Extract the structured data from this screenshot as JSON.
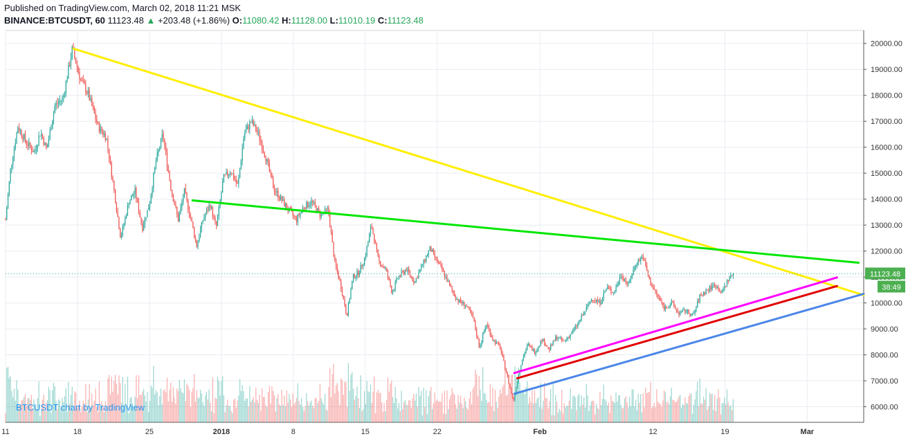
{
  "header": {
    "published": "Published on TradingView.com, March 02, 2018 11:21 MSK",
    "symbol": "BINANCE:BTCUSDT, 60",
    "last": "11123.48",
    "arrow": "▲",
    "change": "+203.48 (+1.86%)",
    "o_label": "O:",
    "o_value": "11080.42",
    "h_label": "H:",
    "h_value": "11128.00",
    "l_label": "L:",
    "l_value": "11010.19",
    "c_label": "C:",
    "c_value": "11123.48"
  },
  "watermark": "BTCUSDT chart by TradingView",
  "colors": {
    "up": "#26a69a",
    "down": "#ef5350",
    "grid": "#e9ecf2",
    "yellow_line": "#ffee00",
    "green_line": "#00e600",
    "magenta_line": "#ff00ff",
    "red_line": "#e00000",
    "blue_line": "#4a86e8",
    "price_tag": "#4caf50",
    "ma": "#f4a460"
  },
  "chart_data": {
    "type": "candlestick",
    "price_axis": {
      "ticks": [
        6000,
        7000,
        8000,
        9000,
        10000,
        11000,
        12000,
        13000,
        14000,
        15000,
        16000,
        17000,
        18000,
        19000,
        20000
      ],
      "tick_labels": [
        "6000.00",
        "7000.00",
        "8000.00",
        "9000.00",
        "10000.00",
        "11000.00",
        "12000.00",
        "13000.00",
        "14000.00",
        "15000.00",
        "16000.00",
        "17000.00",
        "18000.00",
        "19000.00",
        "20000.00"
      ],
      "range": [
        5400,
        20500
      ]
    },
    "time_axis": {
      "ticks": [
        0,
        7,
        14,
        21,
        28,
        35,
        42,
        49,
        56,
        63,
        70,
        77,
        84
      ],
      "tick_labels": [
        "11",
        "18",
        "25",
        "2018",
        "8",
        "15",
        "22",
        "Feb",
        "12",
        "19",
        "Mar"
      ],
      "tick_days": [
        0,
        7,
        14,
        21,
        28,
        35,
        42,
        52,
        63,
        70,
        78
      ],
      "range_days": [
        0,
        83.5
      ],
      "start_date": "2017-12-11"
    },
    "last_price": 11123.48,
    "last_price_label": "11123.48",
    "countdown_label": "38:49",
    "price_anchors": [
      [
        0,
        13200
      ],
      [
        0.5,
        15200
      ],
      [
        1.2,
        16800
      ],
      [
        2,
        16200
      ],
      [
        2.8,
        15800
      ],
      [
        3.4,
        16600
      ],
      [
        4,
        15900
      ],
      [
        4.8,
        17600
      ],
      [
        5.6,
        17900
      ],
      [
        6.5,
        19800
      ],
      [
        7.3,
        18600
      ],
      [
        8,
        18100
      ],
      [
        9,
        16800
      ],
      [
        9.8,
        16400
      ],
      [
        10.5,
        14500
      ],
      [
        11.2,
        12500
      ],
      [
        12,
        13900
      ],
      [
        12.6,
        14300
      ],
      [
        13.3,
        12900
      ],
      [
        14,
        13800
      ],
      [
        14.6,
        15400
      ],
      [
        15.3,
        16500
      ],
      [
        16.1,
        14400
      ],
      [
        16.8,
        13200
      ],
      [
        17.4,
        14300
      ],
      [
        18,
        13300
      ],
      [
        18.6,
        12200
      ],
      [
        19.2,
        13200
      ],
      [
        19.9,
        13800
      ],
      [
        20.5,
        12900
      ],
      [
        21.2,
        14800
      ],
      [
        21.9,
        15100
      ],
      [
        22.6,
        14500
      ],
      [
        23.2,
        16500
      ],
      [
        23.9,
        17000
      ],
      [
        24.6,
        16500
      ],
      [
        25.4,
        15500
      ],
      [
        26.1,
        14400
      ],
      [
        26.8,
        14000
      ],
      [
        27.5,
        13600
      ],
      [
        28.3,
        13200
      ],
      [
        29,
        13700
      ],
      [
        29.8,
        13900
      ],
      [
        30.6,
        13400
      ],
      [
        31.4,
        13600
      ],
      [
        32,
        11600
      ],
      [
        32.6,
        10700
      ],
      [
        33.2,
        9500
      ],
      [
        33.8,
        11000
      ],
      [
        34.4,
        11200
      ],
      [
        35,
        11800
      ],
      [
        35.6,
        13000
      ],
      [
        36.3,
        11600
      ],
      [
        37,
        11300
      ],
      [
        37.6,
        10400
      ],
      [
        38.2,
        11000
      ],
      [
        39,
        11300
      ],
      [
        39.8,
        10800
      ],
      [
        40.6,
        11500
      ],
      [
        41.3,
        12100
      ],
      [
        42,
        11600
      ],
      [
        42.7,
        11100
      ],
      [
        43.4,
        10500
      ],
      [
        44,
        10100
      ],
      [
        44.8,
        9900
      ],
      [
        45.5,
        9400
      ],
      [
        46.1,
        8300
      ],
      [
        46.8,
        9200
      ],
      [
        47.4,
        8600
      ],
      [
        48.1,
        8300
      ],
      [
        48.8,
        7200
      ],
      [
        49.4,
        6200
      ],
      [
        50.1,
        7600
      ],
      [
        50.8,
        8400
      ],
      [
        51.5,
        8100
      ],
      [
        52.2,
        8600
      ],
      [
        52.9,
        8200
      ],
      [
        53.6,
        8700
      ],
      [
        54.3,
        8500
      ],
      [
        55,
        8800
      ],
      [
        55.7,
        9200
      ],
      [
        56.4,
        9700
      ],
      [
        57.1,
        10200
      ],
      [
        57.8,
        10000
      ],
      [
        58.5,
        10600
      ],
      [
        59.2,
        10400
      ],
      [
        59.9,
        11100
      ],
      [
        60.6,
        10700
      ],
      [
        61.3,
        11500
      ],
      [
        62,
        11800
      ],
      [
        62.7,
        10800
      ],
      [
        63.4,
        10300
      ],
      [
        64.1,
        9800
      ],
      [
        64.8,
        10000
      ],
      [
        65.5,
        9600
      ],
      [
        66.2,
        9700
      ],
      [
        66.9,
        9500
      ],
      [
        67.6,
        10300
      ],
      [
        68.3,
        10500
      ],
      [
        69,
        10700
      ],
      [
        69.7,
        10400
      ],
      [
        70.3,
        10900
      ],
      [
        70.9,
        11123
      ]
    ],
    "trendlines": [
      {
        "color": "yellow",
        "from": [
          6.6,
          19800
        ],
        "to": [
          83.5,
          10300
        ]
      },
      {
        "color": "green",
        "from": [
          18.2,
          13950
        ],
        "to": [
          83.0,
          11550
        ]
      },
      {
        "color": "magenta",
        "from": [
          49.5,
          7300
        ],
        "to": [
          80.9,
          10980
        ]
      },
      {
        "color": "red",
        "from": [
          49.8,
          7100
        ],
        "to": [
          80.9,
          10650
        ]
      },
      {
        "color": "blue",
        "from": [
          49.5,
          6500
        ],
        "to": [
          83.5,
          10350
        ]
      }
    ]
  }
}
